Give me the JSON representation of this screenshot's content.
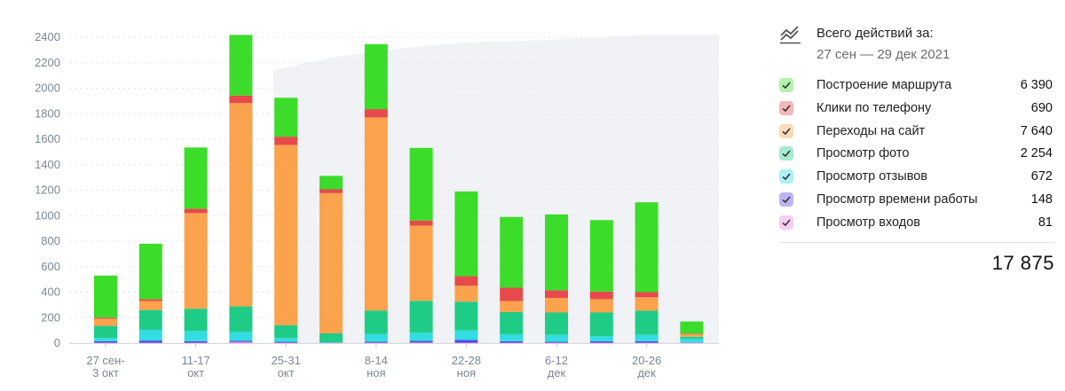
{
  "summary": {
    "title": "Всего действий за:",
    "period": "27 сен — 29 дек 2021",
    "total": "17 875",
    "icon": "trend-chart-icon"
  },
  "legend": [
    {
      "label": "Построение маршрута",
      "value": "6 390",
      "color": "#3cdc2a"
    },
    {
      "label": "Клики по телефону",
      "value": "690",
      "color": "#e64a4a"
    },
    {
      "label": "Переходы на сайт",
      "value": "7 640",
      "color": "#fba24d"
    },
    {
      "label": "Просмотр фото",
      "value": "2 254",
      "color": "#1fcc86"
    },
    {
      "label": "Просмотр отзывов",
      "value": "672",
      "color": "#31dde0"
    },
    {
      "label": "Просмотр времени работы",
      "value": "148",
      "color": "#5b47e0"
    },
    {
      "label": "Просмотр входов",
      "value": "81",
      "color": "#ea83e0"
    }
  ],
  "chart_data": {
    "type": "bar",
    "stacked": true,
    "ylim": [
      0,
      2400
    ],
    "yticks": [
      0,
      200,
      400,
      600,
      800,
      1000,
      1200,
      1400,
      1600,
      1800,
      2000,
      2200,
      2400
    ],
    "grid": true,
    "x_tick_labels": [
      {
        "index": 0,
        "lines": [
          "27 сен-",
          "3 окт"
        ]
      },
      {
        "index": 2,
        "lines": [
          "11-17",
          "окт"
        ]
      },
      {
        "index": 4,
        "lines": [
          "25-31",
          "окт"
        ]
      },
      {
        "index": 6,
        "lines": [
          "8-14",
          "ноя"
        ]
      },
      {
        "index": 8,
        "lines": [
          "22-28",
          "ноя"
        ]
      },
      {
        "index": 10,
        "lines": [
          "6-12",
          "дек"
        ]
      },
      {
        "index": 12,
        "lines": [
          "20-26",
          "дек"
        ]
      }
    ],
    "series": [
      {
        "name": "Просмотр входов",
        "color": "#ea83e0",
        "values": [
          3,
          3,
          3,
          10,
          3,
          2,
          3,
          5,
          3,
          3,
          3,
          3,
          3,
          3
        ]
      },
      {
        "name": "Просмотр времени работы",
        "color": "#5b47e0",
        "values": [
          12,
          17,
          12,
          8,
          7,
          2,
          8,
          12,
          22,
          12,
          7,
          12,
          12,
          2
        ]
      },
      {
        "name": "Просмотр отзывов",
        "color": "#31dde0",
        "values": [
          25,
          85,
          80,
          70,
          30,
          3,
          60,
          65,
          75,
          55,
          55,
          40,
          50,
          30
        ]
      },
      {
        "name": "Просмотр фото",
        "color": "#1fcc86",
        "values": [
          95,
          155,
          175,
          200,
          100,
          70,
          185,
          250,
          225,
          175,
          175,
          185,
          190,
          15
        ]
      },
      {
        "name": "Переходы на сайт",
        "color": "#fba24d",
        "values": [
          55,
          70,
          750,
          1595,
          1415,
          1100,
          1515,
          590,
          125,
          85,
          115,
          105,
          105,
          20
        ]
      },
      {
        "name": "Клики по телефону",
        "color": "#e64a4a",
        "values": [
          10,
          15,
          35,
          60,
          65,
          30,
          65,
          40,
          75,
          105,
          60,
          60,
          40,
          5
        ]
      },
      {
        "name": "Построение маршрута",
        "color": "#3cdc2a",
        "values": [
          330,
          435,
          480,
          475,
          305,
          105,
          510,
          570,
          665,
          555,
          595,
          560,
          705,
          95
        ]
      }
    ],
    "background_area": {
      "color": "#f1f2f6",
      "from_index": 4,
      "values": [
        2140,
        2240,
        2290,
        2330,
        2360,
        2370,
        2380,
        2400,
        2420,
        2420
      ]
    }
  }
}
